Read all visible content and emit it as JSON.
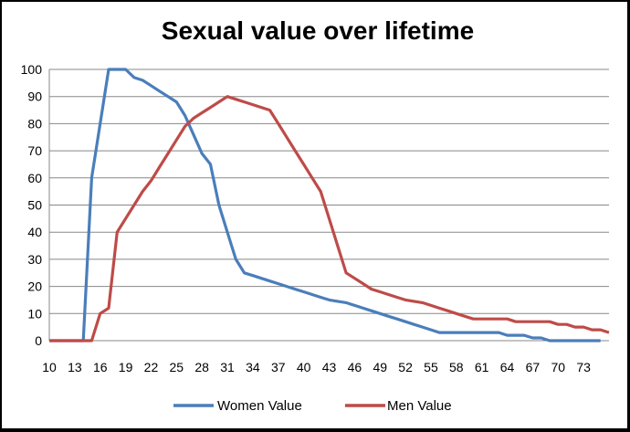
{
  "chart_data": {
    "type": "line",
    "title": "Sexual value over lifetime",
    "xlabel": "",
    "ylabel": "",
    "xlim": [
      10,
      75
    ],
    "ylim": [
      0,
      100
    ],
    "y_ticks": [
      0,
      10,
      20,
      30,
      40,
      50,
      60,
      70,
      80,
      90,
      100
    ],
    "x_ticks": [
      10,
      13,
      16,
      19,
      22,
      25,
      28,
      31,
      34,
      37,
      40,
      43,
      46,
      49,
      52,
      55,
      58,
      61,
      64,
      67,
      70,
      73
    ],
    "grid": "horizontal",
    "legend_position": "bottom",
    "series": [
      {
        "name": "Women Value",
        "color": "#4A7EBB",
        "points": [
          [
            10,
            0
          ],
          [
            11,
            0
          ],
          [
            12,
            0
          ],
          [
            13,
            0
          ],
          [
            14,
            0
          ],
          [
            15,
            60
          ],
          [
            16,
            80
          ],
          [
            17,
            100
          ],
          [
            18,
            100
          ],
          [
            19,
            100
          ],
          [
            20,
            97
          ],
          [
            21,
            96
          ],
          [
            22,
            94
          ],
          [
            23,
            92
          ],
          [
            24,
            90
          ],
          [
            25,
            88
          ],
          [
            26,
            83
          ],
          [
            27,
            76
          ],
          [
            28,
            69
          ],
          [
            29,
            65
          ],
          [
            30,
            50
          ],
          [
            31,
            40
          ],
          [
            32,
            30
          ],
          [
            33,
            25
          ],
          [
            34,
            24
          ],
          [
            35,
            23
          ],
          [
            36,
            22
          ],
          [
            37,
            21
          ],
          [
            38,
            20
          ],
          [
            39,
            19
          ],
          [
            40,
            18
          ],
          [
            41,
            17
          ],
          [
            42,
            16
          ],
          [
            43,
            15
          ],
          [
            44,
            14.5
          ],
          [
            45,
            14
          ],
          [
            46,
            13
          ],
          [
            47,
            12
          ],
          [
            48,
            11
          ],
          [
            49,
            10
          ],
          [
            50,
            9
          ],
          [
            51,
            8
          ],
          [
            52,
            7
          ],
          [
            53,
            6
          ],
          [
            54,
            5
          ],
          [
            55,
            4
          ],
          [
            56,
            3
          ],
          [
            57,
            3
          ],
          [
            58,
            3
          ],
          [
            59,
            3
          ],
          [
            60,
            3
          ],
          [
            61,
            3
          ],
          [
            62,
            3
          ],
          [
            63,
            3
          ],
          [
            64,
            2
          ],
          [
            65,
            2
          ],
          [
            66,
            2
          ],
          [
            67,
            1
          ],
          [
            68,
            1
          ],
          [
            69,
            0
          ],
          [
            70,
            0
          ],
          [
            71,
            0
          ],
          [
            72,
            0
          ],
          [
            73,
            0
          ],
          [
            74,
            0
          ],
          [
            75,
            0
          ]
        ]
      },
      {
        "name": "Men Value",
        "color": "#BE4B48",
        "points": [
          [
            10,
            0
          ],
          [
            11,
            0
          ],
          [
            12,
            0
          ],
          [
            13,
            0
          ],
          [
            14,
            0
          ],
          [
            15,
            0
          ],
          [
            16,
            10
          ],
          [
            17,
            12
          ],
          [
            18,
            40
          ],
          [
            19,
            45
          ],
          [
            20,
            50
          ],
          [
            21,
            55
          ],
          [
            22,
            59
          ],
          [
            23,
            64
          ],
          [
            24,
            69
          ],
          [
            25,
            74
          ],
          [
            26,
            79
          ],
          [
            27,
            82
          ],
          [
            28,
            84
          ],
          [
            29,
            86
          ],
          [
            30,
            88
          ],
          [
            31,
            90
          ],
          [
            32,
            89
          ],
          [
            33,
            88
          ],
          [
            34,
            87
          ],
          [
            35,
            86
          ],
          [
            36,
            85
          ],
          [
            37,
            80
          ],
          [
            38,
            75
          ],
          [
            39,
            70
          ],
          [
            40,
            65
          ],
          [
            41,
            60
          ],
          [
            42,
            55
          ],
          [
            43,
            45
          ],
          [
            44,
            35
          ],
          [
            45,
            25
          ],
          [
            46,
            23
          ],
          [
            47,
            21
          ],
          [
            48,
            19
          ],
          [
            49,
            18
          ],
          [
            50,
            17
          ],
          [
            51,
            16
          ],
          [
            52,
            15
          ],
          [
            53,
            14.5
          ],
          [
            54,
            14
          ],
          [
            55,
            13
          ],
          [
            56,
            12
          ],
          [
            57,
            11
          ],
          [
            58,
            10
          ],
          [
            59,
            9
          ],
          [
            60,
            8
          ],
          [
            61,
            8
          ],
          [
            62,
            8
          ],
          [
            63,
            8
          ],
          [
            64,
            8
          ],
          [
            65,
            7
          ],
          [
            66,
            7
          ],
          [
            67,
            7
          ],
          [
            68,
            7
          ],
          [
            69,
            7
          ],
          [
            70,
            6
          ],
          [
            71,
            6
          ],
          [
            72,
            5
          ],
          [
            73,
            5
          ],
          [
            74,
            4
          ],
          [
            75,
            4
          ],
          [
            76,
            3
          ]
        ]
      }
    ]
  }
}
